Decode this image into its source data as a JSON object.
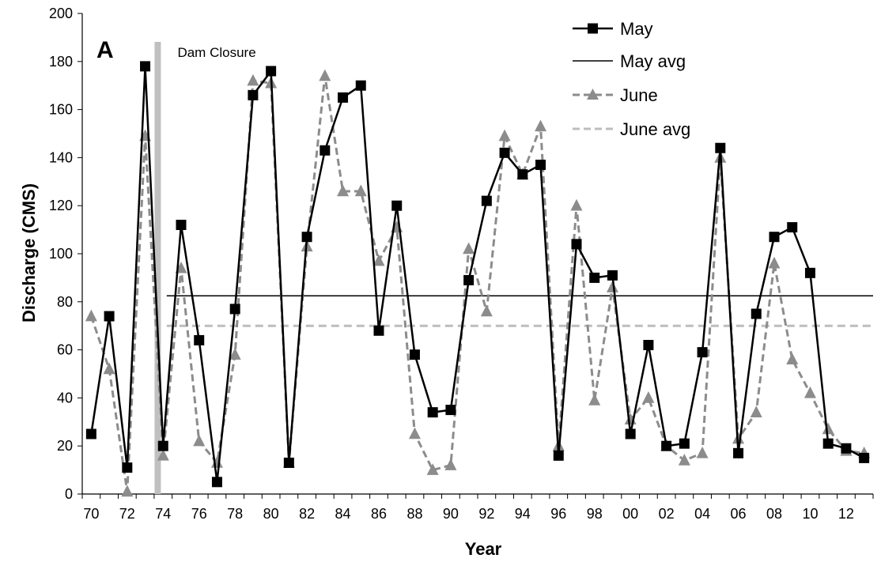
{
  "chart_data": {
    "type": "line",
    "panel_label": "A",
    "title": "",
    "xlabel": "Year",
    "ylabel": "Discharge (CMS)",
    "ylim": [
      0,
      200
    ],
    "y_ticks": [
      "0",
      "20",
      "40",
      "60",
      "80",
      "100",
      "120",
      "140",
      "160",
      "180",
      "200"
    ],
    "x_ticks": [
      "70",
      "72",
      "74",
      "76",
      "78",
      "80",
      "82",
      "84",
      "86",
      "88",
      "90",
      "92",
      "94",
      "96",
      "98",
      "00",
      "02",
      "04",
      "06",
      "08",
      "10",
      "12"
    ],
    "x": [
      1970,
      1971,
      1972,
      1973,
      1974,
      1975,
      1976,
      1977,
      1978,
      1979,
      1980,
      1981,
      1982,
      1983,
      1984,
      1985,
      1986,
      1987,
      1988,
      1989,
      1990,
      1991,
      1992,
      1993,
      1994,
      1995,
      1996,
      1997,
      1998,
      1999,
      2000,
      2001,
      2002,
      2003,
      2004,
      2005,
      2006,
      2007,
      2008,
      2009,
      2010,
      2011,
      2012,
      2013
    ],
    "series": [
      {
        "name": "May",
        "color": "#000000",
        "marker": "square",
        "line": "solid",
        "values": [
          25,
          74,
          11,
          178,
          20,
          112,
          64,
          5,
          77,
          166,
          176,
          13,
          107,
          143,
          165,
          170,
          68,
          120,
          58,
          34,
          35,
          89,
          122,
          142,
          133,
          137,
          16,
          104,
          90,
          91,
          25,
          62,
          20,
          21,
          59,
          144,
          17,
          75,
          107,
          111,
          92,
          21,
          19,
          15
        ]
      },
      {
        "name": "June",
        "color": "#8c8c8c",
        "marker": "triangle",
        "line": "dashed",
        "values": [
          74,
          52,
          1,
          149,
          16,
          94,
          22,
          13,
          58,
          172,
          171,
          13,
          103,
          174,
          126,
          126,
          97,
          111,
          25,
          10,
          12,
          102,
          76,
          149,
          133,
          153,
          20,
          120,
          39,
          86,
          31,
          40,
          20,
          14,
          17,
          140,
          23,
          34,
          96,
          56,
          42,
          27,
          18,
          17
        ]
      }
    ],
    "reference_lines": [
      {
        "name": "May avg",
        "value": 82.5,
        "color": "#000000",
        "line": "solid",
        "from_x": 1974.2
      },
      {
        "name": "June avg",
        "value": 70,
        "color": "#bdbdbd",
        "line": "dashed",
        "from_x": 1974.2
      }
    ],
    "annotations": [
      {
        "text": "Dam Closure",
        "x": 1973.7
      }
    ],
    "legend": {
      "position": "top-right",
      "entries": [
        "May",
        "May avg",
        "June",
        "June avg"
      ]
    },
    "grid": false
  }
}
